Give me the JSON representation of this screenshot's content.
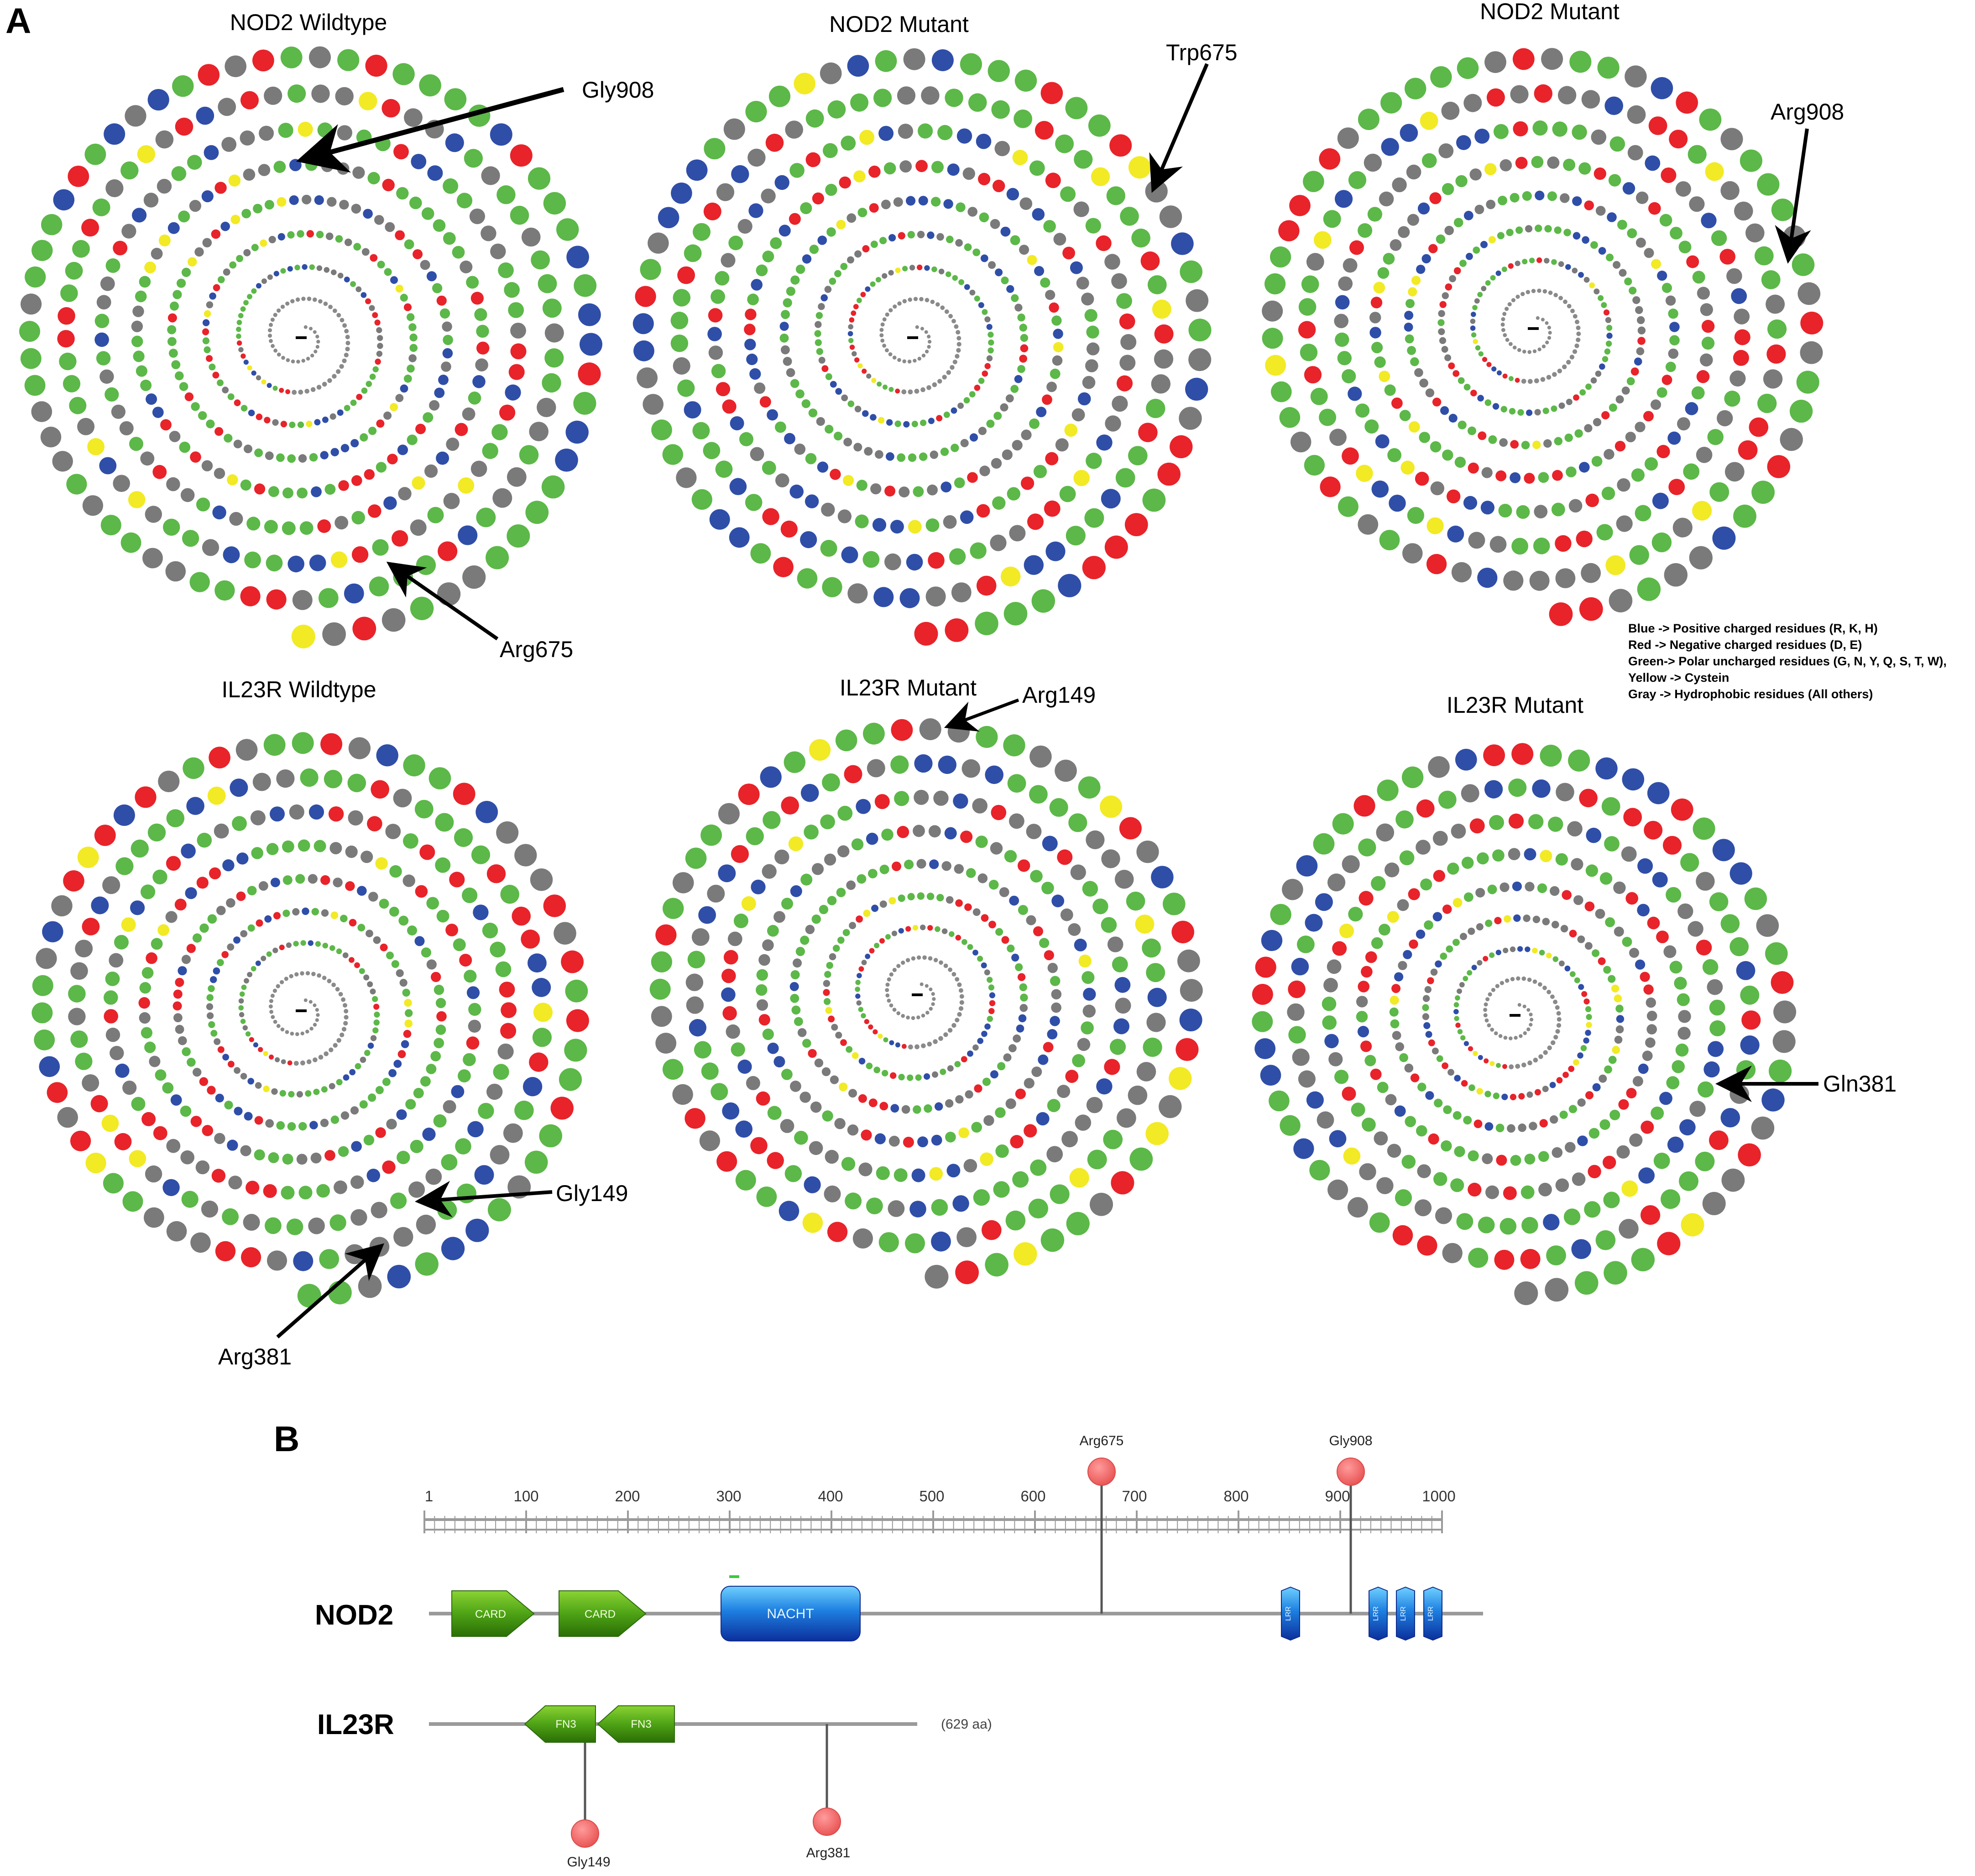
{
  "panels": {
    "a": {
      "letter": "A",
      "wheels": [
        {
          "title": "NOD2 Wildtype",
          "seed": 11
        },
        {
          "title": "NOD2 Mutant",
          "seed": 23
        },
        {
          "title": "NOD2 Mutant",
          "seed": 37
        },
        {
          "title": "IL23R Wildtype",
          "seed": 41
        },
        {
          "title": "IL23R Mutant",
          "seed": 53
        },
        {
          "title": "IL23R Mutant",
          "seed": 67
        }
      ],
      "callouts": [
        "Gly908",
        "Arg675",
        "Trp675",
        "Arg908",
        "Gly149",
        "Arg381",
        "Arg149",
        "Gln381"
      ],
      "legend": [
        {
          "text": "Blue -> Positive charged residues (R, K, H)",
          "color": "#2f4ea8"
        },
        {
          "text": "Red -> Negative charged residues (D, E)",
          "color": "#e8232a"
        },
        {
          "text": "Green-> Polar uncharged residues (G, N, Y, Q, S, T, W),",
          "color": "#5cb848"
        },
        {
          "text": "Yellow -> Cystein",
          "color": "#f2ea24"
        },
        {
          "text": "Gray -> Hydrophobic residues (All others)",
          "color": "#7a7a7a"
        }
      ]
    },
    "b": {
      "letter": "B",
      "scale": {
        "ticks": [
          "1",
          "100",
          "200",
          "300",
          "400",
          "500",
          "600",
          "700",
          "800",
          "900",
          "1000"
        ]
      },
      "nod2": {
        "name": "NOD2",
        "domains": [
          "CARD",
          "CARD",
          "NACHT",
          "LRR",
          "LRR",
          "LRR",
          "LRR"
        ],
        "variants": [
          "Arg675",
          "Gly908"
        ]
      },
      "il23r": {
        "name": "IL23R",
        "length_label": "(629 aa)",
        "domains": [
          "FN3",
          "FN3"
        ],
        "variants": [
          "Gly149",
          "Arg381"
        ]
      }
    }
  }
}
